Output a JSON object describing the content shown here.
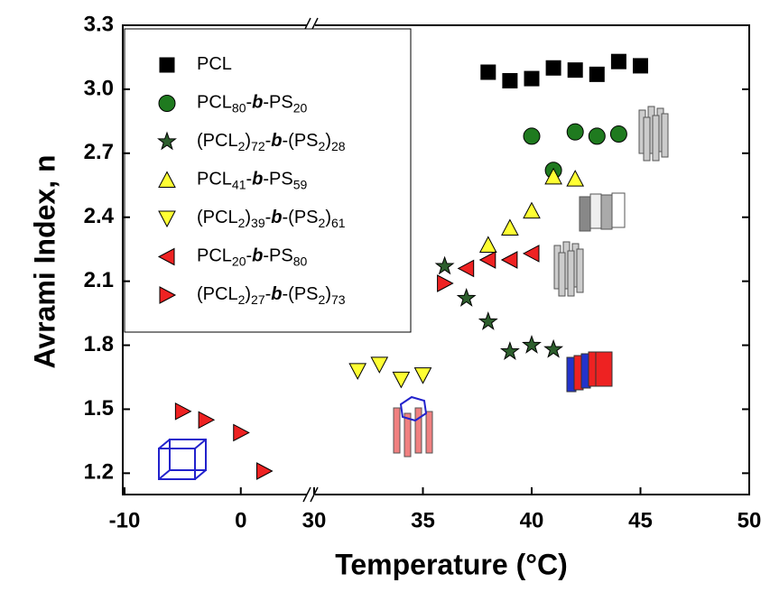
{
  "chart_data": {
    "type": "scatter",
    "xlabel": "Temperature (°C)",
    "ylabel": "Avrami Index, n",
    "xlim": [
      -10,
      50
    ],
    "xbreak": [
      6,
      30
    ],
    "xticks": [
      -10,
      0,
      30,
      35,
      40,
      45,
      50
    ],
    "ylim": [
      1.1,
      3.3
    ],
    "yticks": [
      3.3,
      {
        "value": 3,
        "label": "3.0"
      },
      2.7,
      2.4,
      2.1,
      1.8,
      1.5,
      1.2
    ],
    "legend": "upper left",
    "series": [
      {
        "name": "PCL",
        "color": "#000000",
        "marker": "square",
        "x": [
          38,
          39,
          40,
          41,
          42,
          43,
          44,
          45
        ],
        "values": [
          3.08,
          3.04,
          3.05,
          3.1,
          3.09,
          3.07,
          3.13,
          3.11
        ]
      },
      {
        "name": "PCL80-b-PS20",
        "color": "#1f7a1f",
        "marker": "circle",
        "x": [
          40,
          41,
          42,
          43,
          44
        ],
        "values": [
          2.78,
          2.62,
          2.8,
          2.78,
          2.79
        ]
      },
      {
        "name": "(PCL2)72-b-(PS2)28",
        "color": "#2d5e2d",
        "marker": "star",
        "x": [
          36,
          37,
          38,
          39,
          40,
          41
        ],
        "values": [
          2.17,
          2.02,
          1.91,
          1.77,
          1.8,
          1.78
        ]
      },
      {
        "name": "PCL41-b-PS59",
        "color": "#ffff33",
        "marker": "triangle-up",
        "x": [
          38,
          39,
          40,
          41,
          42
        ],
        "values": [
          2.27,
          2.35,
          2.43,
          2.59,
          2.58
        ]
      },
      {
        "name": "(PCL2)39-b-(PS2)61",
        "color": "#ffff33",
        "marker": "triangle-down",
        "x": [
          32,
          33,
          34,
          35
        ],
        "values": [
          1.68,
          1.71,
          1.64,
          1.66
        ]
      },
      {
        "name": "PCL20-b-PS80",
        "color": "#ee2222",
        "marker": "triangle-left",
        "x": [
          37,
          38,
          39,
          40
        ],
        "values": [
          2.16,
          2.2,
          2.2,
          2.23
        ]
      },
      {
        "name": "(PCL2)27-b-(PS2)73",
        "color": "#ee2222",
        "marker": "triangle-right",
        "x": [
          -5,
          -3,
          0,
          2,
          36
        ],
        "values": [
          1.49,
          1.45,
          1.39,
          1.21,
          2.09
        ]
      }
    ]
  }
}
